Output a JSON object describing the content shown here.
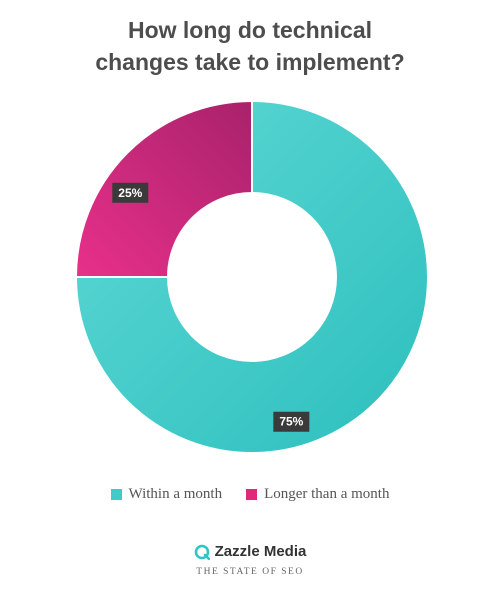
{
  "colors": {
    "within_month": "#3ecbc9",
    "longer_month": "#e0287b",
    "label_bg": "#3a3a3a",
    "logo": "#2cc6c4"
  },
  "chart_data": {
    "type": "pie",
    "donut": true,
    "title": "How long do technical changes take to implement?",
    "series": [
      {
        "name": "Within a month",
        "value": 75,
        "label": "75%",
        "color": "#3ecbc9"
      },
      {
        "name": "Longer than a month",
        "value": 25,
        "label": "25%",
        "color": "#e0287b"
      }
    ],
    "legend_position": "bottom"
  },
  "title": {
    "line1": "How long do technical",
    "line2": "changes take to implement?"
  },
  "legend": [
    {
      "label": "Within a month"
    },
    {
      "label": "Longer than a month"
    }
  ],
  "brand": {
    "icon": "zazzle-media-logo-icon",
    "name": "Zazzle Media",
    "subtitle": "THE STATE OF SEO"
  }
}
